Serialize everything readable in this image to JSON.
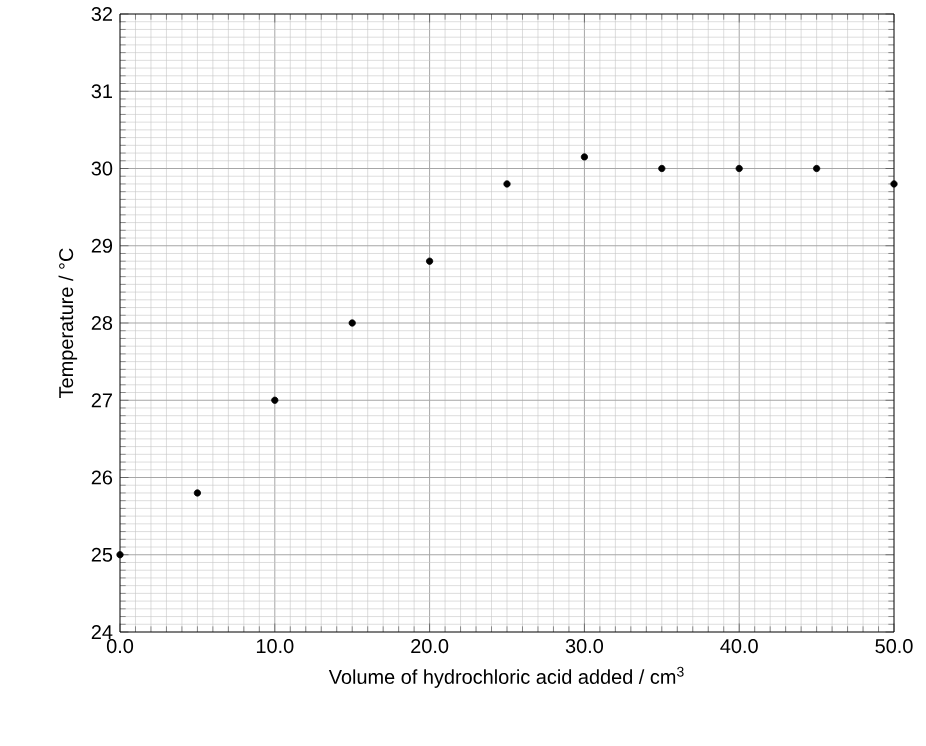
{
  "chart_data": {
    "type": "scatter",
    "xlabel": "Volume of hydrochloric acid added / cm$^{3}$",
    "ylabel": "Temperature / °C",
    "x": [
      0,
      5,
      10,
      15,
      20,
      25,
      30,
      35,
      40,
      45,
      50
    ],
    "values": [
      25,
      25.8,
      27,
      28,
      28.8,
      29.8,
      30.15,
      30,
      30,
      30,
      29.8
    ],
    "color": "#000000",
    "marker": "circle",
    "grid": true,
    "xlim": [
      0,
      50
    ],
    "ylim": [
      24,
      32
    ],
    "xticks": [
      {
        "value": 0,
        "label": "0.0"
      },
      {
        "value": 10,
        "label": "10.0"
      },
      {
        "value": 20,
        "label": "20.0"
      },
      {
        "value": 30,
        "label": "30.0"
      },
      {
        "value": 40,
        "label": "40.0"
      },
      {
        "value": 50,
        "label": "50.0"
      }
    ],
    "yticks": [
      24,
      25,
      26,
      27,
      28,
      29,
      30,
      31,
      32
    ]
  }
}
